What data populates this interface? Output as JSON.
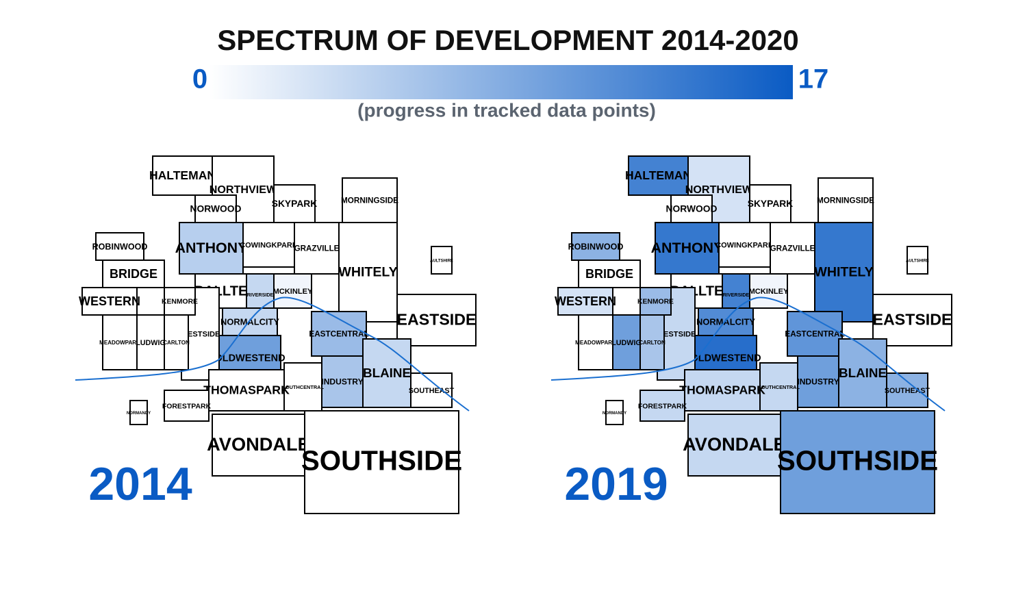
{
  "title": "SPECTRUM OF DEVELOPMENT 2014-2020",
  "legend": {
    "min": 0,
    "max": 17,
    "caption": "(progress in tracked data points)",
    "colors": [
      "#ffffff",
      "#0a5bc4"
    ]
  },
  "neighborhoods": [
    "HALTEMAN",
    "NORTHVIEW",
    "NORWOOD",
    "SKYPARK",
    "MORNINGSIDE",
    "ANTHONY",
    "COWINGKPARK",
    "GRAZVILLE",
    "WHITELY",
    "AULTSHIRE",
    "EASTSIDE",
    "BALLTE",
    "RIVERSIDE",
    "MCKINLEY",
    "NORMALCITY",
    "OLDWESTEND",
    "WESTSIDE",
    "EASTCENTRAL",
    "INDUSTRY",
    "BLAINE",
    "SOUTHEAST",
    "SOUTHCENTRAL",
    "THOMASPARK",
    "FORESTPARK",
    "AVONDALE",
    "SOUTHSIDE",
    "ROBINWOOD",
    "BRIDGE",
    "WESTERN",
    "MEADOWPARK",
    "LUDWIG",
    "CARLTON",
    "KENMORE",
    "NORMANDY"
  ],
  "maps": [
    {
      "year": "2014",
      "values": [
        0,
        0,
        0,
        0,
        0,
        5,
        0,
        0,
        0,
        0,
        0,
        0,
        4,
        1,
        4,
        10,
        0,
        7,
        6,
        4,
        0,
        0,
        0,
        0,
        0,
        0,
        0,
        0,
        0,
        0,
        0,
        0,
        0,
        0
      ]
    },
    {
      "year": "2019",
      "values": [
        13,
        3,
        0,
        0,
        0,
        14,
        0,
        0,
        14,
        0,
        0,
        0,
        13,
        1,
        12,
        15,
        4,
        11,
        10,
        8,
        8,
        4,
        4,
        4,
        4,
        10,
        8,
        0,
        3,
        0,
        10,
        6,
        7,
        0
      ]
    }
  ]
}
